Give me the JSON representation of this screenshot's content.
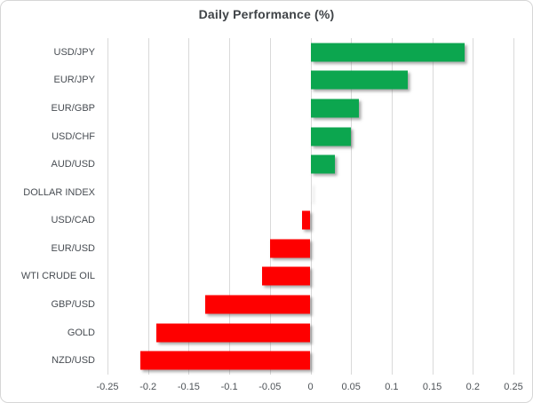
{
  "chart_data": {
    "type": "bar",
    "orientation": "horizontal",
    "title": "Daily Performance (%)",
    "categories": [
      "USD/JPY",
      "EUR/JPY",
      "EUR/GBP",
      "USD/CHF",
      "AUD/USD",
      "DOLLAR INDEX",
      "USD/CAD",
      "EUR/USD",
      "WTI CRUDE OIL",
      "GBP/USD",
      "GOLD",
      "NZD/USD"
    ],
    "values": [
      0.19,
      0.12,
      0.06,
      0.05,
      0.03,
      0.0,
      -0.01,
      -0.05,
      -0.06,
      -0.13,
      -0.19,
      -0.21
    ],
    "xlabel": "",
    "ylabel": "",
    "xlim": [
      -0.25,
      0.25
    ],
    "xticks": [
      -0.25,
      -0.2,
      -0.15,
      -0.1,
      -0.05,
      0,
      0.05,
      0.1,
      0.15,
      0.2,
      0.25
    ],
    "xtick_labels": [
      "-0.25",
      "-0.2",
      "-0.15",
      "-0.1",
      "-0.05",
      "0",
      "0.05",
      "0.1",
      "0.15",
      "0.2",
      "0.25"
    ],
    "grid": true,
    "legend": false,
    "colors": {
      "positive": "#0ca64f",
      "negative": "#fe0000",
      "grid": "#d9d9d9",
      "title_text": "#3f4347",
      "axis_text": "#4d5257"
    }
  }
}
